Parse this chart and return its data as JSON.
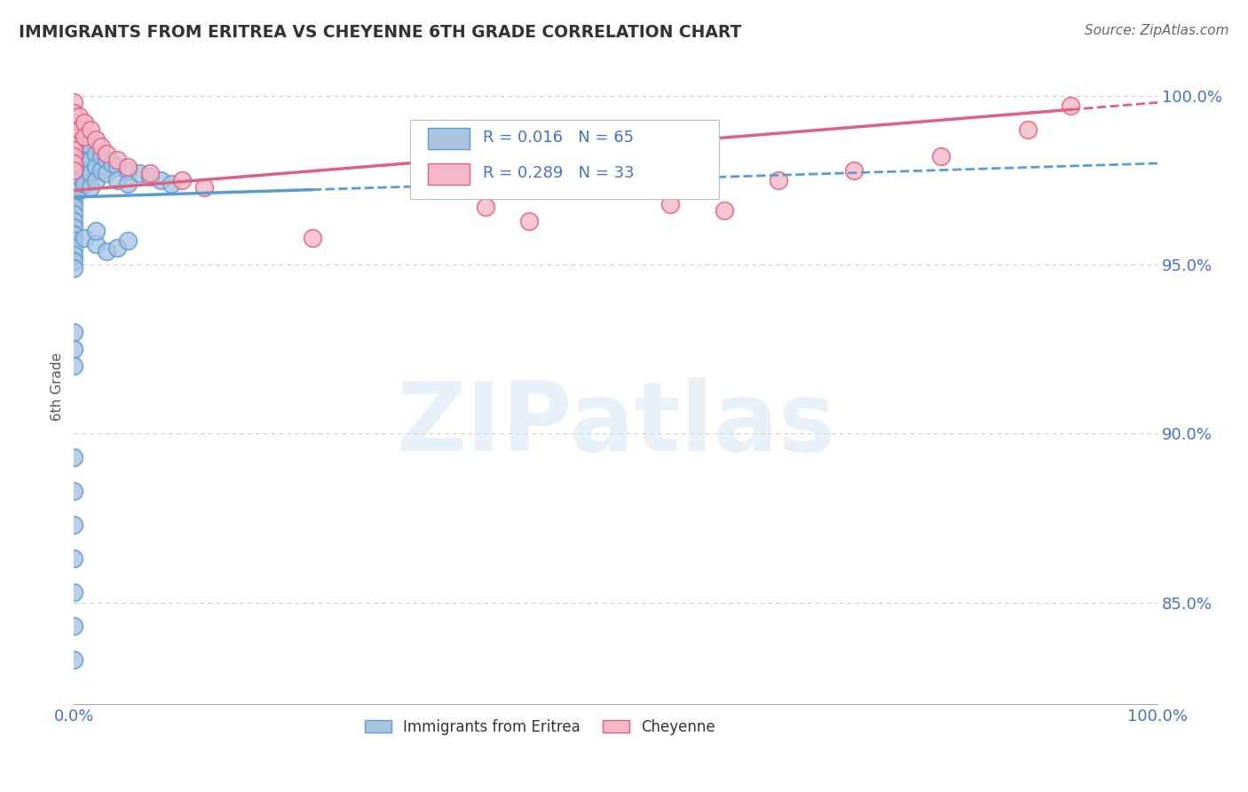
{
  "title": "IMMIGRANTS FROM ERITREA VS CHEYENNE 6TH GRADE CORRELATION CHART",
  "source": "Source: ZipAtlas.com",
  "ylabel": "6th Grade",
  "watermark": "ZIPatlas",
  "legend_blue_label": "Immigrants from Eritrea",
  "legend_pink_label": "Cheyenne",
  "legend_blue_r": "R = 0.016",
  "legend_blue_n": "N = 65",
  "legend_pink_r": "R = 0.289",
  "legend_pink_n": "N = 33",
  "xlim": [
    0.0,
    1.0
  ],
  "ylim": [
    0.82,
    1.008
  ],
  "yticks": [
    0.85,
    0.9,
    0.95,
    1.0
  ],
  "ytick_labels": [
    "85.0%",
    "90.0%",
    "95.0%",
    "100.0%"
  ],
  "grid_color": "#cccccc",
  "background_color": "#ffffff",
  "blue_color": "#aac4e0",
  "blue_edge_color": "#5b9bd5",
  "pink_color": "#f4b8c8",
  "pink_edge_color": "#e06080",
  "title_color": "#333333",
  "axis_label_color": "#4472c4",
  "ylabel_color": "#555555",
  "blue_trend_start_y": 0.97,
  "blue_trend_end_y": 0.98,
  "blue_trend_solid_xmax": 0.22,
  "pink_trend_start_y": 0.972,
  "pink_trend_end_y": 0.998,
  "pink_trend_solid_xmax": 0.92,
  "blue_scatter_x": [
    0.0,
    0.0,
    0.0,
    0.0,
    0.0,
    0.0,
    0.0,
    0.0,
    0.0,
    0.0,
    0.0,
    0.0,
    0.0,
    0.0,
    0.0,
    0.0,
    0.0,
    0.0,
    0.0,
    0.0,
    0.005,
    0.005,
    0.005,
    0.005,
    0.005,
    0.01,
    0.01,
    0.01,
    0.01,
    0.015,
    0.015,
    0.015,
    0.015,
    0.02,
    0.02,
    0.02,
    0.025,
    0.025,
    0.03,
    0.03,
    0.035,
    0.04,
    0.04,
    0.05,
    0.05,
    0.06,
    0.07,
    0.08,
    0.09,
    0.0,
    0.0,
    0.0,
    0.0,
    0.0,
    0.0,
    0.0,
    0.0,
    0.0,
    0.0,
    0.01,
    0.02,
    0.02,
    0.03,
    0.04,
    0.05
  ],
  "blue_scatter_y": [
    0.99,
    0.987,
    0.984,
    0.981,
    0.979,
    0.977,
    0.975,
    0.973,
    0.971,
    0.969,
    0.967,
    0.965,
    0.963,
    0.961,
    0.959,
    0.957,
    0.955,
    0.953,
    0.951,
    0.949,
    0.988,
    0.984,
    0.98,
    0.976,
    0.972,
    0.986,
    0.982,
    0.978,
    0.974,
    0.985,
    0.981,
    0.977,
    0.973,
    0.983,
    0.979,
    0.975,
    0.982,
    0.978,
    0.981,
    0.977,
    0.98,
    0.979,
    0.975,
    0.978,
    0.974,
    0.977,
    0.976,
    0.975,
    0.974,
    0.893,
    0.883,
    0.873,
    0.863,
    0.853,
    0.843,
    0.833,
    0.93,
    0.925,
    0.92,
    0.958,
    0.956,
    0.96,
    0.954,
    0.955,
    0.957
  ],
  "pink_scatter_x": [
    0.0,
    0.0,
    0.0,
    0.0,
    0.0,
    0.0,
    0.0,
    0.0,
    0.0,
    0.0,
    0.005,
    0.005,
    0.01,
    0.01,
    0.015,
    0.02,
    0.025,
    0.03,
    0.04,
    0.05,
    0.07,
    0.1,
    0.12,
    0.22,
    0.38,
    0.42,
    0.55,
    0.6,
    0.65,
    0.72,
    0.8,
    0.88,
    0.92
  ],
  "pink_scatter_y": [
    0.998,
    0.995,
    0.992,
    0.99,
    0.988,
    0.986,
    0.984,
    0.982,
    0.98,
    0.978,
    0.994,
    0.99,
    0.992,
    0.988,
    0.99,
    0.987,
    0.985,
    0.983,
    0.981,
    0.979,
    0.977,
    0.975,
    0.973,
    0.958,
    0.967,
    0.963,
    0.968,
    0.966,
    0.975,
    0.978,
    0.982,
    0.99,
    0.997
  ]
}
